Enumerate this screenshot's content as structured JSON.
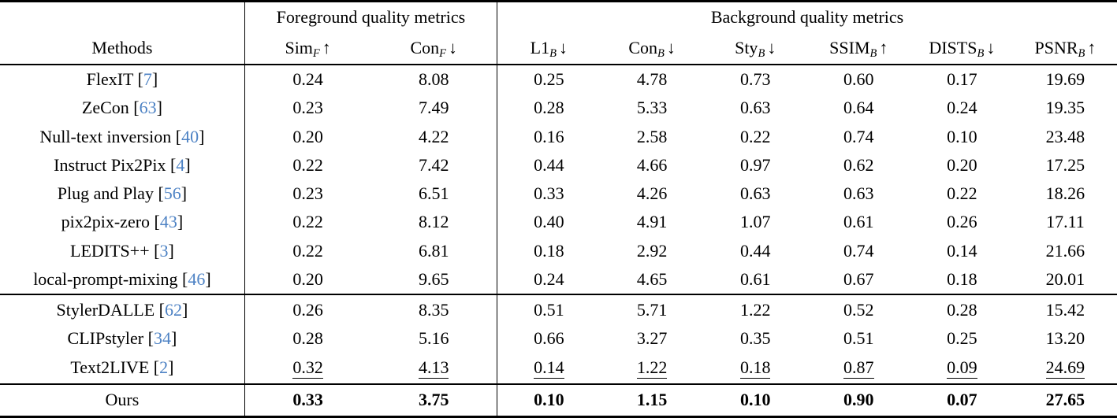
{
  "table": {
    "citation_color": "#4d82c4",
    "header": {
      "methods_label": "Methods",
      "groups": [
        {
          "label": "Foreground quality metrics",
          "span": 2
        },
        {
          "label": "Background quality metrics",
          "span": 6
        }
      ],
      "columns": [
        {
          "name": "Sim",
          "sub": "F",
          "arrow": "↑"
        },
        {
          "name": "Con",
          "sub": "F",
          "arrow": "↓"
        },
        {
          "name": "L1",
          "sub": "B",
          "arrow": "↓"
        },
        {
          "name": "Con",
          "sub": "B",
          "arrow": "↓"
        },
        {
          "name": "Sty",
          "sub": "B",
          "arrow": "↓"
        },
        {
          "name": "SSIM",
          "sub": "B",
          "arrow": "↑"
        },
        {
          "name": "DISTS",
          "sub": "B",
          "arrow": "↓"
        },
        {
          "name": "PSNR",
          "sub": "B",
          "arrow": "↑"
        }
      ]
    },
    "sections": [
      {
        "rows": [
          {
            "method": "FlexIT",
            "cite": "7",
            "values": [
              "0.24",
              "8.08",
              "0.25",
              "4.78",
              "0.73",
              "0.60",
              "0.17",
              "19.69"
            ]
          },
          {
            "method": "ZeCon",
            "cite": "63",
            "values": [
              "0.23",
              "7.49",
              "0.28",
              "5.33",
              "0.63",
              "0.64",
              "0.24",
              "19.35"
            ]
          },
          {
            "method": "Null-text inversion",
            "cite": "40",
            "values": [
              "0.20",
              "4.22",
              "0.16",
              "2.58",
              "0.22",
              "0.74",
              "0.10",
              "23.48"
            ]
          },
          {
            "method": "Instruct Pix2Pix",
            "cite": "4",
            "values": [
              "0.22",
              "7.42",
              "0.44",
              "4.66",
              "0.97",
              "0.62",
              "0.20",
              "17.25"
            ]
          },
          {
            "method": "Plug and Play",
            "cite": "56",
            "values": [
              "0.23",
              "6.51",
              "0.33",
              "4.26",
              "0.63",
              "0.63",
              "0.22",
              "18.26"
            ]
          },
          {
            "method": "pix2pix-zero",
            "cite": "43",
            "values": [
              "0.22",
              "8.12",
              "0.40",
              "4.91",
              "1.07",
              "0.61",
              "0.26",
              "17.11"
            ]
          },
          {
            "method": "LEDITS++",
            "cite": "3",
            "values": [
              "0.22",
              "6.81",
              "0.18",
              "2.92",
              "0.44",
              "0.74",
              "0.14",
              "21.66"
            ]
          },
          {
            "method": "local-prompt-mixing",
            "cite": "46",
            "values": [
              "0.20",
              "9.65",
              "0.24",
              "4.65",
              "0.61",
              "0.67",
              "0.18",
              "20.01"
            ]
          }
        ]
      },
      {
        "rows": [
          {
            "method": "StylerDALLE",
            "cite": "62",
            "values": [
              "0.26",
              "8.35",
              "0.51",
              "5.71",
              "1.22",
              "0.52",
              "0.28",
              "15.42"
            ]
          },
          {
            "method": "CLIPstyler",
            "cite": "34",
            "values": [
              "0.28",
              "5.16",
              "0.66",
              "3.27",
              "0.35",
              "0.51",
              "0.25",
              "13.20"
            ]
          },
          {
            "method": "Text2LIVE",
            "cite": "2",
            "underline": true,
            "values": [
              "0.32",
              "4.13",
              "0.14",
              "1.22",
              "0.18",
              "0.87",
              "0.09",
              "24.69"
            ]
          }
        ]
      },
      {
        "rows": [
          {
            "method": "Ours",
            "cite": null,
            "bold": true,
            "values": [
              "0.33",
              "3.75",
              "0.10",
              "1.15",
              "0.10",
              "0.90",
              "0.07",
              "27.65"
            ]
          }
        ]
      }
    ]
  }
}
